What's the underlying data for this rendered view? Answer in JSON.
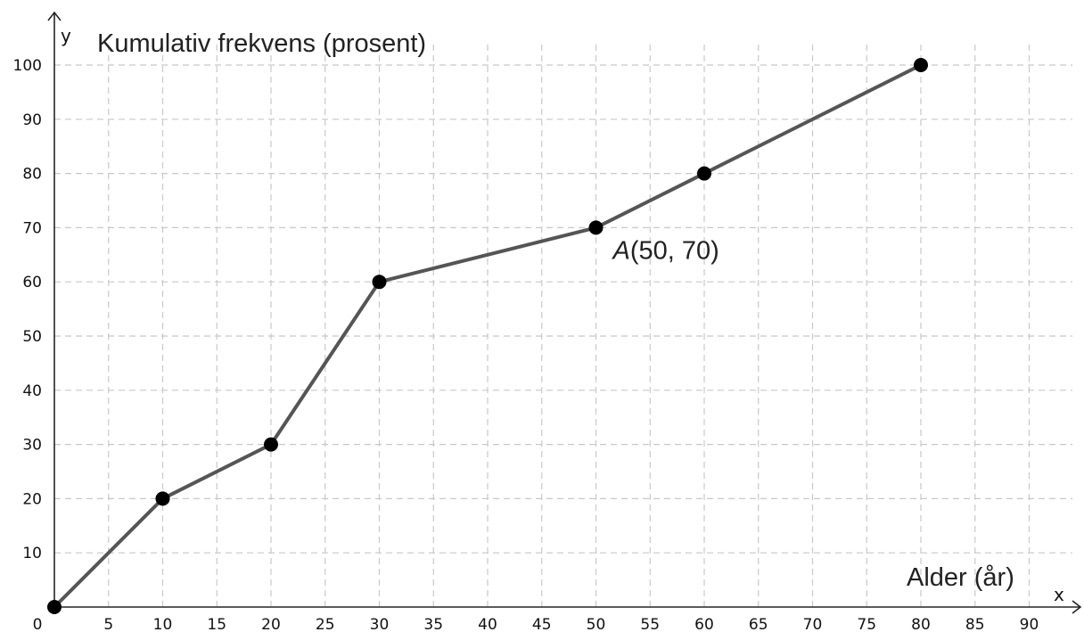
{
  "chart_data": {
    "type": "line",
    "title": "Kumulativ frekvens (prosent)",
    "xlabel": "Alder (år)",
    "ylabel": "",
    "x_axis_letter": "x",
    "y_axis_letter": "y",
    "origin_label": "0",
    "xlim": [
      0,
      95
    ],
    "ylim": [
      0,
      105
    ],
    "x_ticks": [
      5,
      10,
      15,
      20,
      25,
      30,
      35,
      40,
      45,
      50,
      55,
      60,
      65,
      70,
      75,
      80,
      85,
      90
    ],
    "x_tick_labels": [
      "5",
      "10",
      "15",
      "20",
      "25",
      "30",
      "35",
      "40",
      "45",
      "50",
      "55",
      "60",
      "65",
      "70",
      "75",
      "80",
      "85",
      "90"
    ],
    "y_ticks": [
      10,
      20,
      30,
      40,
      50,
      60,
      70,
      80,
      90,
      100
    ],
    "y_tick_labels": [
      "10",
      "20",
      "30",
      "40",
      "50",
      "60",
      "70",
      "80",
      "90",
      "100"
    ],
    "grid": true,
    "series": [
      {
        "x": [
          0,
          10,
          20,
          30,
          50,
          60,
          80
        ],
        "y": [
          0,
          20,
          30,
          60,
          70,
          80,
          100
        ],
        "color": "#555555",
        "marker_color": "#000000"
      }
    ],
    "annotations": [
      {
        "text_prefix": "A",
        "text_suffix": "(50, 70)",
        "x": 50,
        "y": 70
      }
    ]
  }
}
